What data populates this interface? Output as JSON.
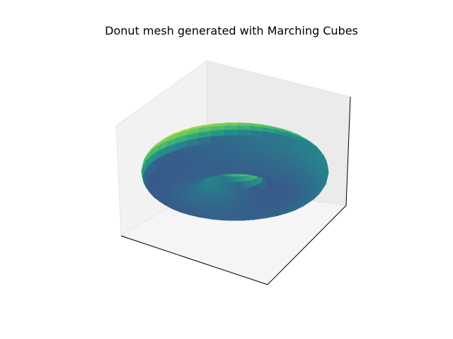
{
  "chart_data": {
    "type": "3d-surface",
    "title": "Donut mesh generated with Marching Cubes",
    "xlabel": "",
    "ylabel": "",
    "zlabel": "",
    "ticks_visible": false,
    "grid": false,
    "colormap": "viridis",
    "shape": "torus",
    "colormap_stops": [
      "#440154",
      "#3b528b",
      "#21918c",
      "#5ec962",
      "#fde725"
    ],
    "pane_colors": {
      "back_right": "#ebebeb",
      "back_left": "#f2f2f2",
      "floor": "#f5f5f5"
    }
  }
}
